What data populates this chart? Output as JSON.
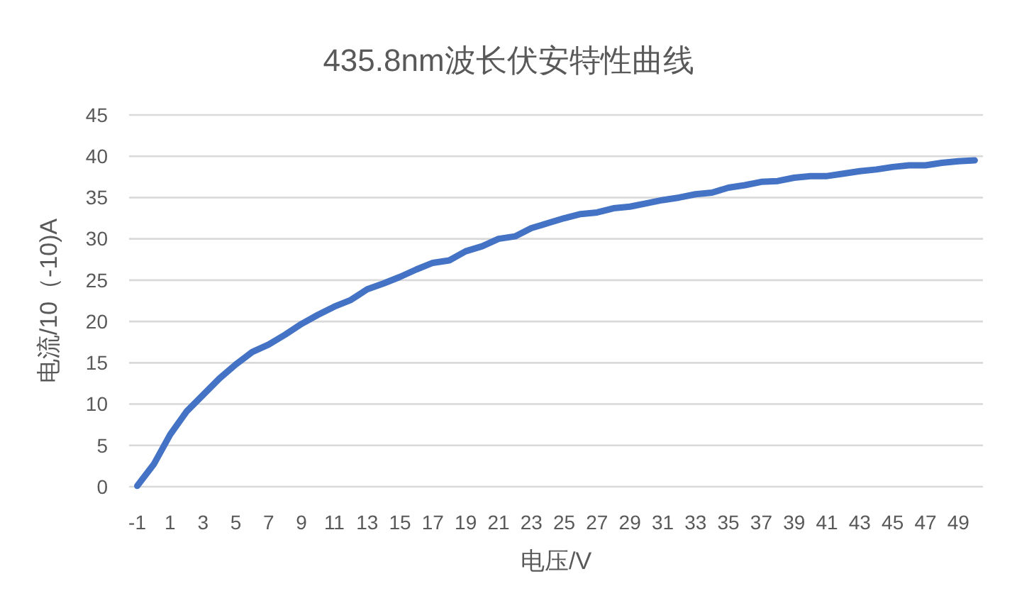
{
  "chart_data": {
    "type": "line",
    "title": "435.8nm波长伏安特性曲线",
    "xlabel": "电压/V",
    "ylabel": "电流/10（-10)A",
    "x": [
      -1,
      0,
      1,
      2,
      3,
      4,
      5,
      6,
      7,
      8,
      9,
      10,
      11,
      12,
      13,
      14,
      15,
      16,
      17,
      18,
      19,
      20,
      21,
      22,
      23,
      24,
      25,
      26,
      27,
      28,
      29,
      30,
      31,
      32,
      33,
      34,
      35,
      36,
      37,
      38,
      39,
      40,
      41,
      42,
      43,
      44,
      45,
      46,
      47,
      48,
      49,
      50
    ],
    "series": [
      {
        "color": "#4472c4",
        "values": [
          0.1,
          2.7,
          6.3,
          9.1,
          11.1,
          13.1,
          14.8,
          16.3,
          17.2,
          18.4,
          19.7,
          20.8,
          21.8,
          22.6,
          23.9,
          24.6,
          25.4,
          26.3,
          27.1,
          27.4,
          28.5,
          29.1,
          30.0,
          30.3,
          31.3,
          31.9,
          32.5,
          33.0,
          33.2,
          33.7,
          33.9,
          34.3,
          34.7,
          35.0,
          35.4,
          35.6,
          36.2,
          36.5,
          36.9,
          37.0,
          37.4,
          37.6,
          37.6,
          37.9,
          38.2,
          38.4,
          38.7,
          38.9,
          38.9,
          39.2,
          39.4,
          39.5
        ]
      }
    ],
    "xlim": [
      -1.5,
      50.5
    ],
    "xticks": [
      -1,
      1,
      3,
      5,
      7,
      9,
      11,
      13,
      15,
      17,
      19,
      21,
      23,
      25,
      27,
      29,
      31,
      33,
      35,
      37,
      39,
      41,
      43,
      45,
      47,
      49
    ],
    "ylim": [
      0,
      45
    ],
    "yticks": [
      0,
      5,
      10,
      15,
      20,
      25,
      30,
      35,
      40,
      45
    ],
    "grid": "y"
  }
}
